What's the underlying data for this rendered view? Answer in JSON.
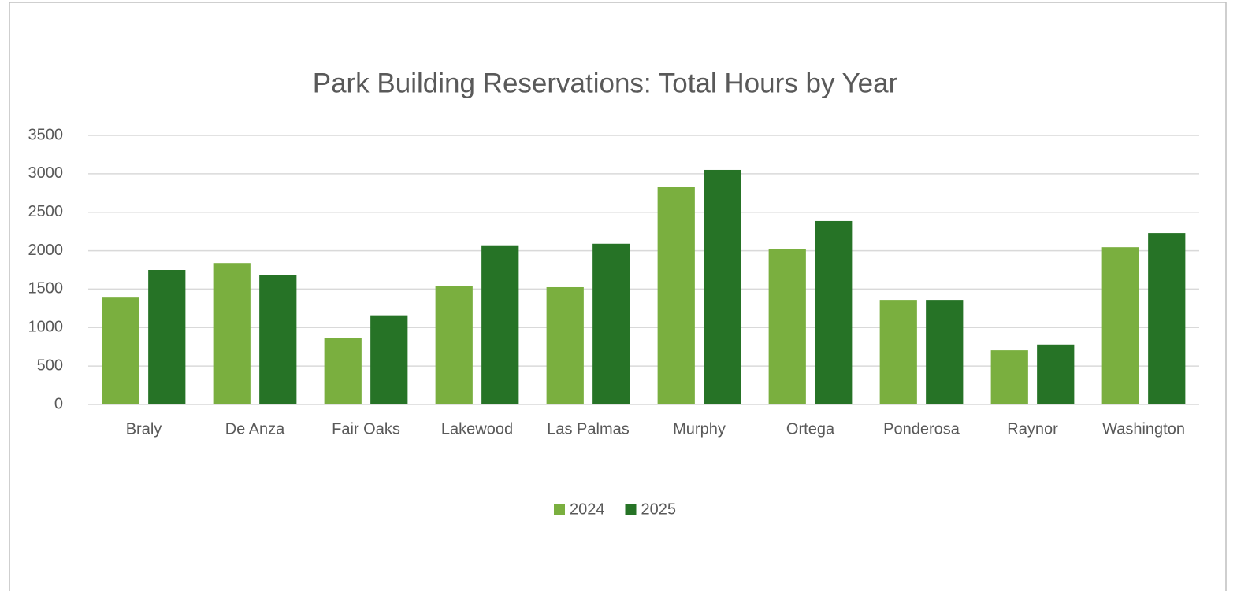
{
  "chart_data": {
    "type": "bar",
    "title": "Park Building Reservations: Total Hours by Year",
    "categories": [
      "Braly",
      "De Anza",
      "Fair Oaks",
      "Lakewood",
      "Las Palmas",
      "Murphy",
      "Ortega",
      "Ponderosa",
      "Raynor",
      "Washington"
    ],
    "series": [
      {
        "name": "2024",
        "color": "#7aaf3f",
        "values": [
          1390,
          1840,
          860,
          1545,
          1525,
          2825,
          2025,
          1360,
          705,
          2045
        ]
      },
      {
        "name": "2025",
        "color": "#267326",
        "values": [
          1750,
          1680,
          1160,
          2070,
          2090,
          3050,
          2385,
          1360,
          780,
          2230
        ]
      }
    ],
    "ylim": [
      0,
      3500
    ],
    "yticks": [
      0,
      500,
      1000,
      1500,
      2000,
      2500,
      3000,
      3500
    ],
    "grid": true,
    "legend": "bottom"
  }
}
